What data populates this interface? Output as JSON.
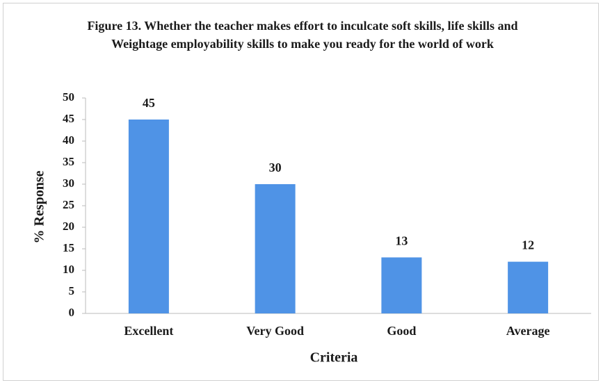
{
  "chart_data": {
    "type": "bar",
    "title": "Figure 13. Whether the teacher makes effort to inculcate soft skills, life skills and Weightage employability skills to make you ready for the world of work",
    "x_label": "Criteria",
    "y_label": "% Response",
    "categories": [
      "Excellent",
      "Very Good",
      "Good",
      "Average"
    ],
    "values": [
      45,
      30,
      13,
      12
    ],
    "color": "#4f93e6",
    "ylim": [
      0,
      50
    ],
    "yticks": [
      0,
      5,
      10,
      15,
      20,
      25,
      30,
      35,
      40,
      45,
      50
    ],
    "grid": false
  }
}
